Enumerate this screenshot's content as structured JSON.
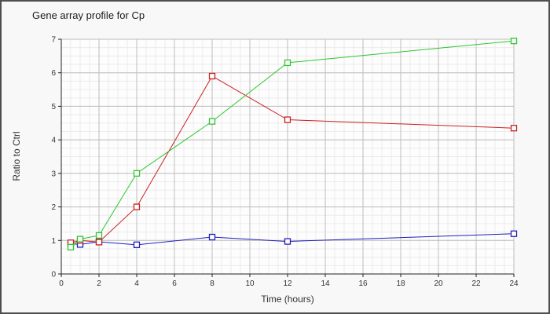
{
  "window": {
    "title": "Gene array profile for Cp"
  },
  "chart_data": {
    "type": "line",
    "title": "Gene array profile for Cp",
    "xlabel": "Time (hours)",
    "ylabel": "Ratio to Ctrl",
    "xlim": [
      0,
      24
    ],
    "ylim": [
      0,
      7
    ],
    "x_major_ticks": [
      0,
      2,
      4,
      6,
      8,
      10,
      12,
      14,
      16,
      18,
      20,
      22,
      24
    ],
    "y_major_ticks": [
      0,
      1,
      2,
      3,
      4,
      5,
      6,
      7
    ],
    "x_minor_step": 0.5,
    "y_minor_step": 0.25,
    "grid": true,
    "legend": "none",
    "marker": "open-square",
    "x": [
      0.5,
      1,
      2,
      4,
      8,
      12,
      24
    ],
    "series": [
      {
        "name": "series-blue",
        "color": "#2020c0",
        "values": [
          0.9,
          0.88,
          0.96,
          0.87,
          1.1,
          0.97,
          1.2
        ]
      },
      {
        "name": "series-red",
        "color": "#cc2020",
        "values": [
          0.93,
          1.0,
          0.95,
          2.0,
          5.9,
          4.6,
          4.35
        ]
      },
      {
        "name": "series-green",
        "color": "#2fc52f",
        "values": [
          0.8,
          1.04,
          1.15,
          3.0,
          4.55,
          6.3,
          6.95
        ]
      }
    ],
    "colors": {
      "plot_bg": "#fdfdfd",
      "grid_minor": "#ececec",
      "grid_major": "#bdbdbd",
      "axis": "#222222",
      "marker_fill": "#ffffff"
    }
  }
}
